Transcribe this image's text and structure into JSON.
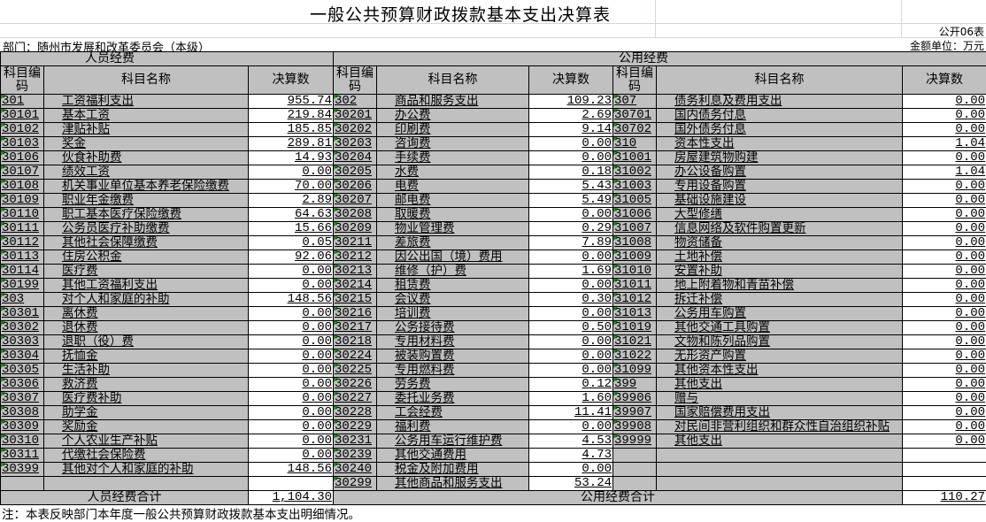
{
  "title": "一般公共预算财政拨款基本支出决算表",
  "form_no": "公开06表",
  "department": "部门：随州市发展和改革委员会（本级）",
  "unit": "金额单位：万元",
  "personnel": {
    "section": "人员经费",
    "headers": [
      "科目编码",
      "科目名称",
      "决算数"
    ],
    "rows": [
      [
        "301",
        "工资福利支出",
        "955.74"
      ],
      [
        "30101",
        "基本工资",
        "219.84"
      ],
      [
        "30102",
        "津贴补贴",
        "185.85"
      ],
      [
        "30103",
        "奖金",
        "289.81"
      ],
      [
        "30106",
        "伙食补助费",
        "14.93"
      ],
      [
        "30107",
        "绩效工资",
        "0.00"
      ],
      [
        "30108",
        "机关事业单位基本养老保险缴费",
        "70.00"
      ],
      [
        "30109",
        "职业年金缴费",
        "2.89"
      ],
      [
        "30110",
        "职工基本医疗保险缴费",
        "64.63"
      ],
      [
        "30111",
        "公务员医疗补助缴费",
        "15.66"
      ],
      [
        "30112",
        "其他社会保障缴费",
        "0.05"
      ],
      [
        "30113",
        "住房公积金",
        "92.06"
      ],
      [
        "30114",
        "医疗费",
        "0.00"
      ],
      [
        "30199",
        "其他工资福利支出",
        "0.00"
      ],
      [
        "303",
        "对个人和家庭的补助",
        "148.56"
      ],
      [
        "30301",
        "离休费",
        "0.00"
      ],
      [
        "30302",
        "退休费",
        "0.00"
      ],
      [
        "30303",
        "退职（役）费",
        "0.00"
      ],
      [
        "30304",
        "抚恤金",
        "0.00"
      ],
      [
        "30305",
        "生活补助",
        "0.00"
      ],
      [
        "30306",
        "救济费",
        "0.00"
      ],
      [
        "30307",
        "医疗费补助",
        "0.00"
      ],
      [
        "30308",
        "助学金",
        "0.00"
      ],
      [
        "30309",
        "奖励金",
        "0.00"
      ],
      [
        "30310",
        "个人农业生产补贴",
        "0.00"
      ],
      [
        "30311",
        "代缴社会保险费",
        "0.00"
      ],
      [
        "30399",
        "其他对个人和家庭的补助",
        "148.56"
      ],
      [
        "",
        "",
        ""
      ]
    ],
    "total_label": "人员经费合计",
    "total_value": "1,104.30"
  },
  "public": {
    "section": "公用经费",
    "headers": [
      "科目编码",
      "科目名称",
      "决算数"
    ],
    "left_rows": [
      [
        "302",
        "商品和服务支出",
        "109.23"
      ],
      [
        "30201",
        "办公费",
        "2.69"
      ],
      [
        "30202",
        "印刷费",
        "9.14"
      ],
      [
        "30203",
        "咨询费",
        "0.00"
      ],
      [
        "30204",
        "手续费",
        "0.00"
      ],
      [
        "30205",
        "水费",
        "0.18"
      ],
      [
        "30206",
        "电费",
        "5.43"
      ],
      [
        "30207",
        "邮电费",
        "5.49"
      ],
      [
        "30208",
        "取暖费",
        "0.00"
      ],
      [
        "30209",
        "物业管理费",
        "0.29"
      ],
      [
        "30211",
        "差旅费",
        "7.89"
      ],
      [
        "30212",
        "因公出国（境）费用",
        "0.00"
      ],
      [
        "30213",
        "维修（护）费",
        "1.69"
      ],
      [
        "30214",
        "租赁费",
        "0.00"
      ],
      [
        "30215",
        "会议费",
        "0.30"
      ],
      [
        "30216",
        "培训费",
        "0.00"
      ],
      [
        "30217",
        "公务接待费",
        "0.50"
      ],
      [
        "30218",
        "专用材料费",
        "0.00"
      ],
      [
        "30224",
        "被装购置费",
        "0.00"
      ],
      [
        "30225",
        "专用燃料费",
        "0.00"
      ],
      [
        "30226",
        "劳务费",
        "0.12"
      ],
      [
        "30227",
        "委托业务费",
        "1.60"
      ],
      [
        "30228",
        "工会经费",
        "11.41"
      ],
      [
        "30229",
        "福利费",
        "0.00"
      ],
      [
        "30231",
        "公务用车运行维护费",
        "4.53"
      ],
      [
        "30239",
        "其他交通费用",
        "4.73"
      ],
      [
        "30240",
        "税金及附加费用",
        "0.00"
      ],
      [
        "30299",
        "其他商品和服务支出",
        "53.24"
      ]
    ],
    "right_rows": [
      [
        "307",
        "债务利息及费用支出",
        "0.00"
      ],
      [
        "30701",
        "国内债务付息",
        "0.00"
      ],
      [
        "30702",
        "国外债务付息",
        "0.00"
      ],
      [
        "310",
        "资本性支出",
        "1.04"
      ],
      [
        "31001",
        "房屋建筑物购建",
        "0.00"
      ],
      [
        "31002",
        "办公设备购置",
        "1.04"
      ],
      [
        "31003",
        "专用设备购置",
        "0.00"
      ],
      [
        "31005",
        "基础设施建设",
        "0.00"
      ],
      [
        "31006",
        "大型修缮",
        "0.00"
      ],
      [
        "31007",
        "信息网络及软件购置更新",
        "0.00"
      ],
      [
        "31008",
        "物资储备",
        "0.00"
      ],
      [
        "31009",
        "土地补偿",
        "0.00"
      ],
      [
        "31010",
        "安置补助",
        "0.00"
      ],
      [
        "31011",
        "地上附着物和青苗补偿",
        "0.00"
      ],
      [
        "31012",
        "拆迁补偿",
        "0.00"
      ],
      [
        "31013",
        "公务用车购置",
        "0.00"
      ],
      [
        "31019",
        "其他交通工具购置",
        "0.00"
      ],
      [
        "31021",
        "文物和陈列品购置",
        "0.00"
      ],
      [
        "31022",
        "无形资产购置",
        "0.00"
      ],
      [
        "31099",
        "其他资本性支出",
        "0.00"
      ],
      [
        "399",
        "其他支出",
        "0.00"
      ],
      [
        "39906",
        "赠与",
        "0.00"
      ],
      [
        "39907",
        "国家赔偿费用支出",
        "0.00"
      ],
      [
        "39908",
        "对民间非营利组织和群众性自治组织补贴",
        "0.00"
      ],
      [
        "39999",
        "其他支出",
        "0.00"
      ],
      [
        "",
        "",
        ""
      ],
      [
        "",
        "",
        ""
      ],
      [
        "",
        "",
        ""
      ]
    ],
    "total_label": "公用经费合计",
    "total_value": "110.27"
  },
  "note": "注：本表反映部门本年度一般公共预算财政拨款基本支出明细情况。"
}
